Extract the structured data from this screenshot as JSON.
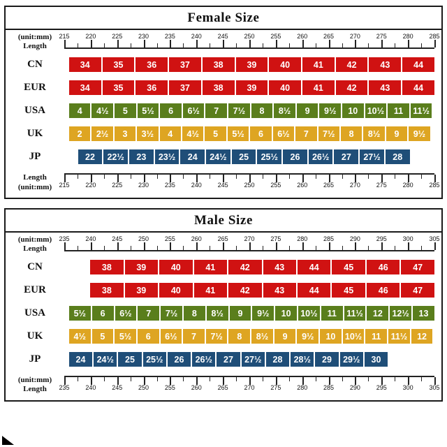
{
  "chart_data": [
    {
      "type": "table",
      "id": "female",
      "title": "Female Size",
      "unit": "mm",
      "top_label": [
        "(unit:mm)",
        "Length"
      ],
      "bottom_label": [
        "Length",
        "(unit:mm)"
      ],
      "ticks": [
        "215",
        "220",
        "225",
        "230",
        "235",
        "240",
        "245",
        "250",
        "255",
        "260",
        "265",
        "270",
        "275",
        "280",
        "285"
      ],
      "rows": [
        {
          "label": "CN",
          "color": "#d01212",
          "start_pct": 1.3,
          "end_pct": 100,
          "values": [
            "34",
            "35",
            "36",
            "37",
            "38",
            "39",
            "40",
            "41",
            "42",
            "43",
            "44"
          ]
        },
        {
          "label": "EUR",
          "color": "#d01212",
          "start_pct": 1.3,
          "end_pct": 100,
          "values": [
            "34",
            "35",
            "36",
            "37",
            "38",
            "39",
            "40",
            "41",
            "42",
            "43",
            "44"
          ]
        },
        {
          "label": "USA",
          "color": "#5a7e1c",
          "start_pct": 1.3,
          "end_pct": 99.3,
          "values": [
            "4",
            "4½",
            "5",
            "5½",
            "6",
            "6½",
            "7",
            "7½",
            "8",
            "8½",
            "9",
            "9½",
            "10",
            "10½",
            "11",
            "11½"
          ]
        },
        {
          "label": "UK",
          "color": "#dea522",
          "start_pct": 1.3,
          "end_pct": 98.8,
          "values": [
            "2",
            "2½",
            "3",
            "3½",
            "4",
            "4½",
            "5",
            "5½",
            "6",
            "6½",
            "7",
            "7½",
            "8",
            "8½",
            "9",
            "9½"
          ]
        },
        {
          "label": "JP",
          "color": "#1f4e78",
          "start_pct": 3.7,
          "end_pct": 93.3,
          "values": [
            "22",
            "22½",
            "23",
            "23½",
            "24",
            "24½",
            "25",
            "25½",
            "26",
            "26½",
            "27",
            "27½",
            "28"
          ]
        }
      ]
    },
    {
      "type": "table",
      "id": "male",
      "title": "Male Size",
      "unit": "mm",
      "top_label": [
        "(unit:mm)",
        "Length"
      ],
      "bottom_label": [
        "(unit:mm)",
        "Length"
      ],
      "ticks": [
        "235",
        "240",
        "245",
        "250",
        "255",
        "260",
        "265",
        "270",
        "275",
        "280",
        "285",
        "290",
        "295",
        "300",
        "305"
      ],
      "rows": [
        {
          "label": "CN",
          "color": "#d01212",
          "start_pct": 7,
          "end_pct": 100,
          "values": [
            "38",
            "39",
            "40",
            "41",
            "42",
            "43",
            "44",
            "45",
            "46",
            "47"
          ]
        },
        {
          "label": "EUR",
          "color": "#d01212",
          "start_pct": 7,
          "end_pct": 100,
          "values": [
            "38",
            "39",
            "40",
            "41",
            "42",
            "43",
            "44",
            "45",
            "46",
            "47"
          ]
        },
        {
          "label": "USA",
          "color": "#5a7e1c",
          "start_pct": 1.3,
          "end_pct": 100,
          "values": [
            "5½",
            "6",
            "6½",
            "7",
            "7½",
            "8",
            "8½",
            "9",
            "9½",
            "10",
            "10½",
            "11",
            "11½",
            "12",
            "12½",
            "13"
          ]
        },
        {
          "label": "UK",
          "color": "#dea522",
          "start_pct": 1.3,
          "end_pct": 99.5,
          "values": [
            "4½",
            "5",
            "5½",
            "6",
            "6½",
            "7",
            "7½",
            "8",
            "8½",
            "9",
            "9½",
            "10",
            "10½",
            "11",
            "11½",
            "12"
          ]
        },
        {
          "label": "JP",
          "color": "#1f4e78",
          "start_pct": 1.3,
          "end_pct": 87.4,
          "values": [
            "24",
            "24½",
            "25",
            "25½",
            "26",
            "26½",
            "27",
            "27½",
            "28",
            "28½",
            "29",
            "29½",
            "30"
          ]
        }
      ]
    }
  ]
}
